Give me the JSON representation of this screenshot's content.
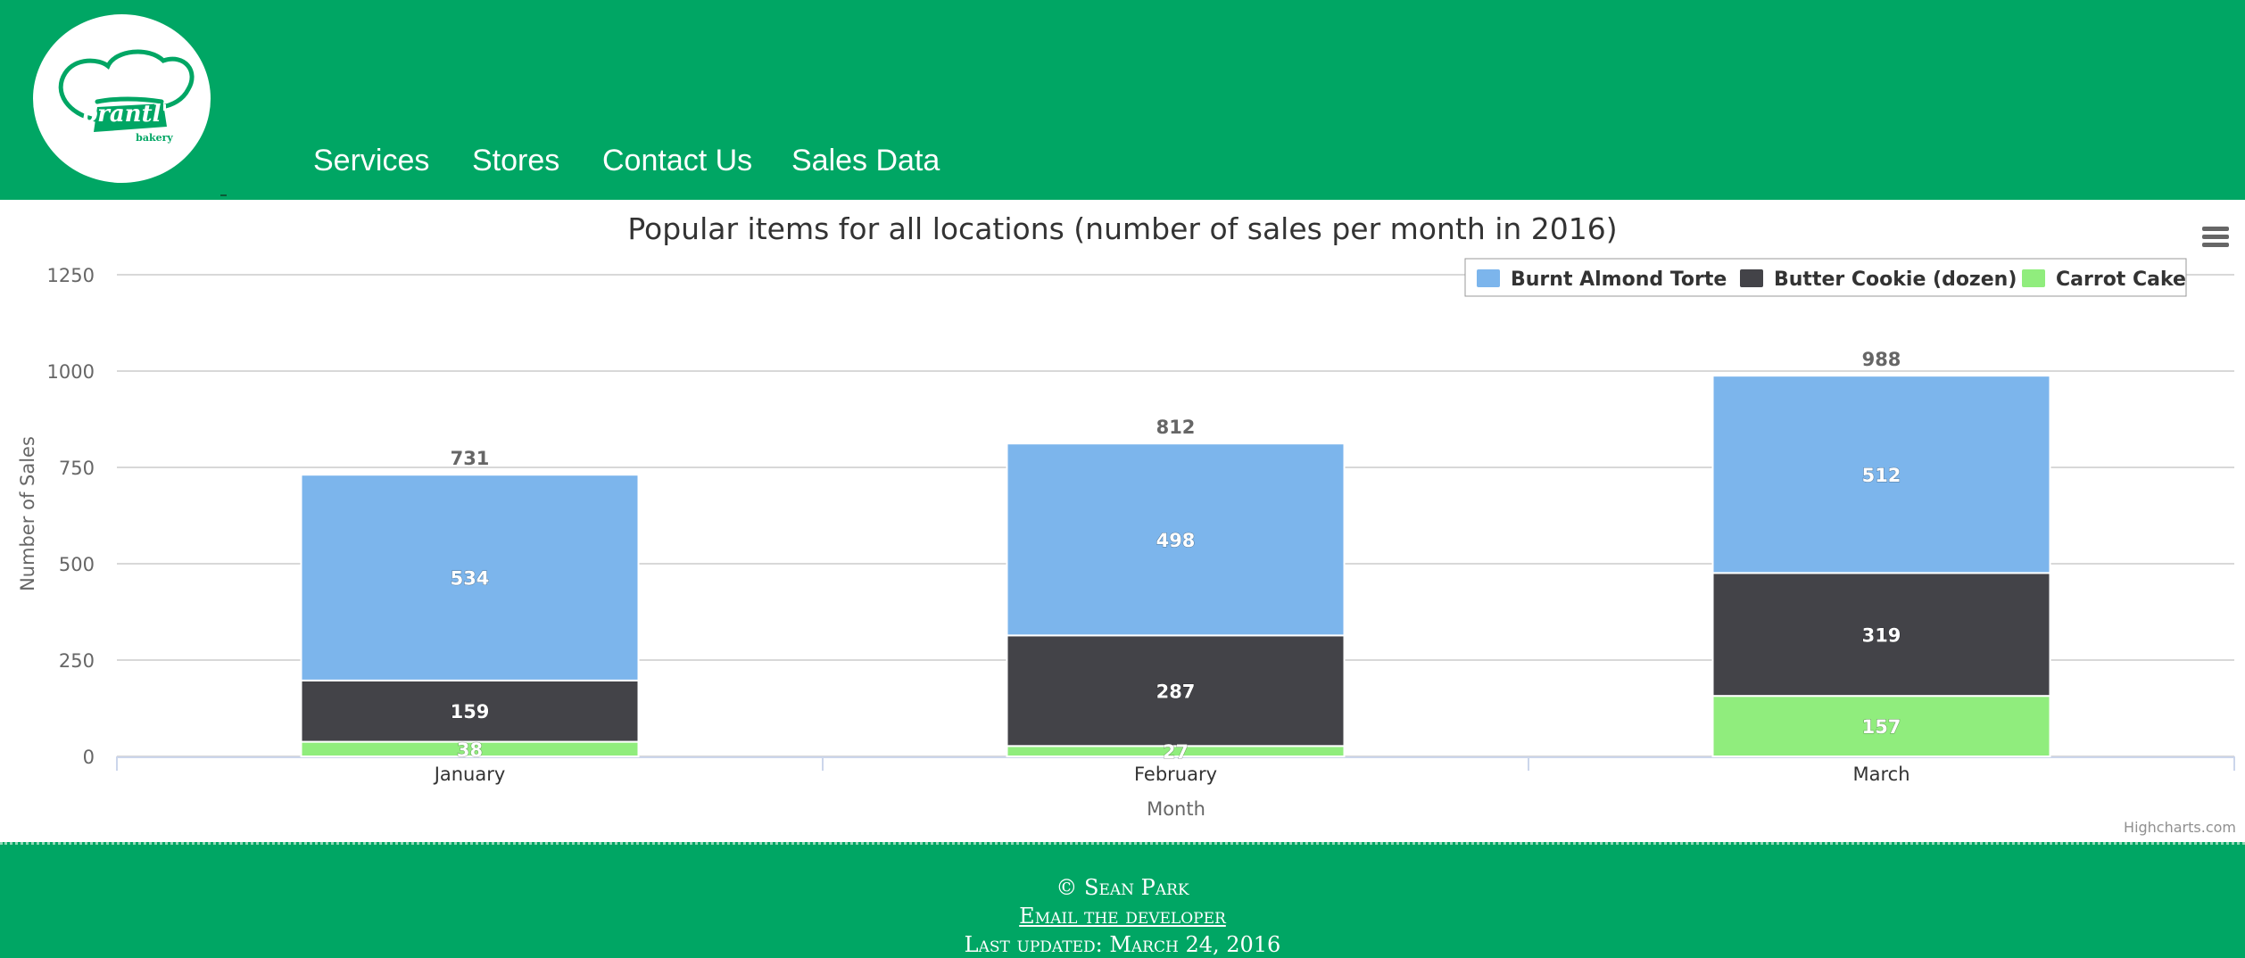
{
  "header": {
    "logo_text": "prantl's",
    "logo_subtext": "bakery",
    "nav": [
      {
        "label": "Services"
      },
      {
        "label": "Stores"
      },
      {
        "label": "Contact Us"
      },
      {
        "label": "Sales Data"
      }
    ]
  },
  "chart_data": {
    "type": "bar",
    "stacked": true,
    "title": "Popular items for all locations (number of sales per month in 2016)",
    "xlabel": "Month",
    "ylabel": "Number of Sales",
    "categories": [
      "January",
      "February",
      "March"
    ],
    "ylim": [
      0,
      1250
    ],
    "yticks": [
      0,
      250,
      500,
      750,
      1000,
      1250
    ],
    "grid": true,
    "legend_position": "top-right",
    "series": [
      {
        "name": "Burnt Almond Torte",
        "color": "#7cb5ec",
        "values": [
          534,
          498,
          512
        ]
      },
      {
        "name": "Butter Cookie (dozen)",
        "color": "#434348",
        "values": [
          159,
          287,
          319
        ]
      },
      {
        "name": "Carrot Cake",
        "color": "#90ed7d",
        "values": [
          38,
          27,
          157
        ]
      }
    ],
    "totals": [
      731,
      812,
      988
    ],
    "credits": "Highcharts.com"
  },
  "footer": {
    "copyright": "© Sean Park",
    "email_link": "Email the developer",
    "updated": "Last updated: March 24, 2016"
  }
}
